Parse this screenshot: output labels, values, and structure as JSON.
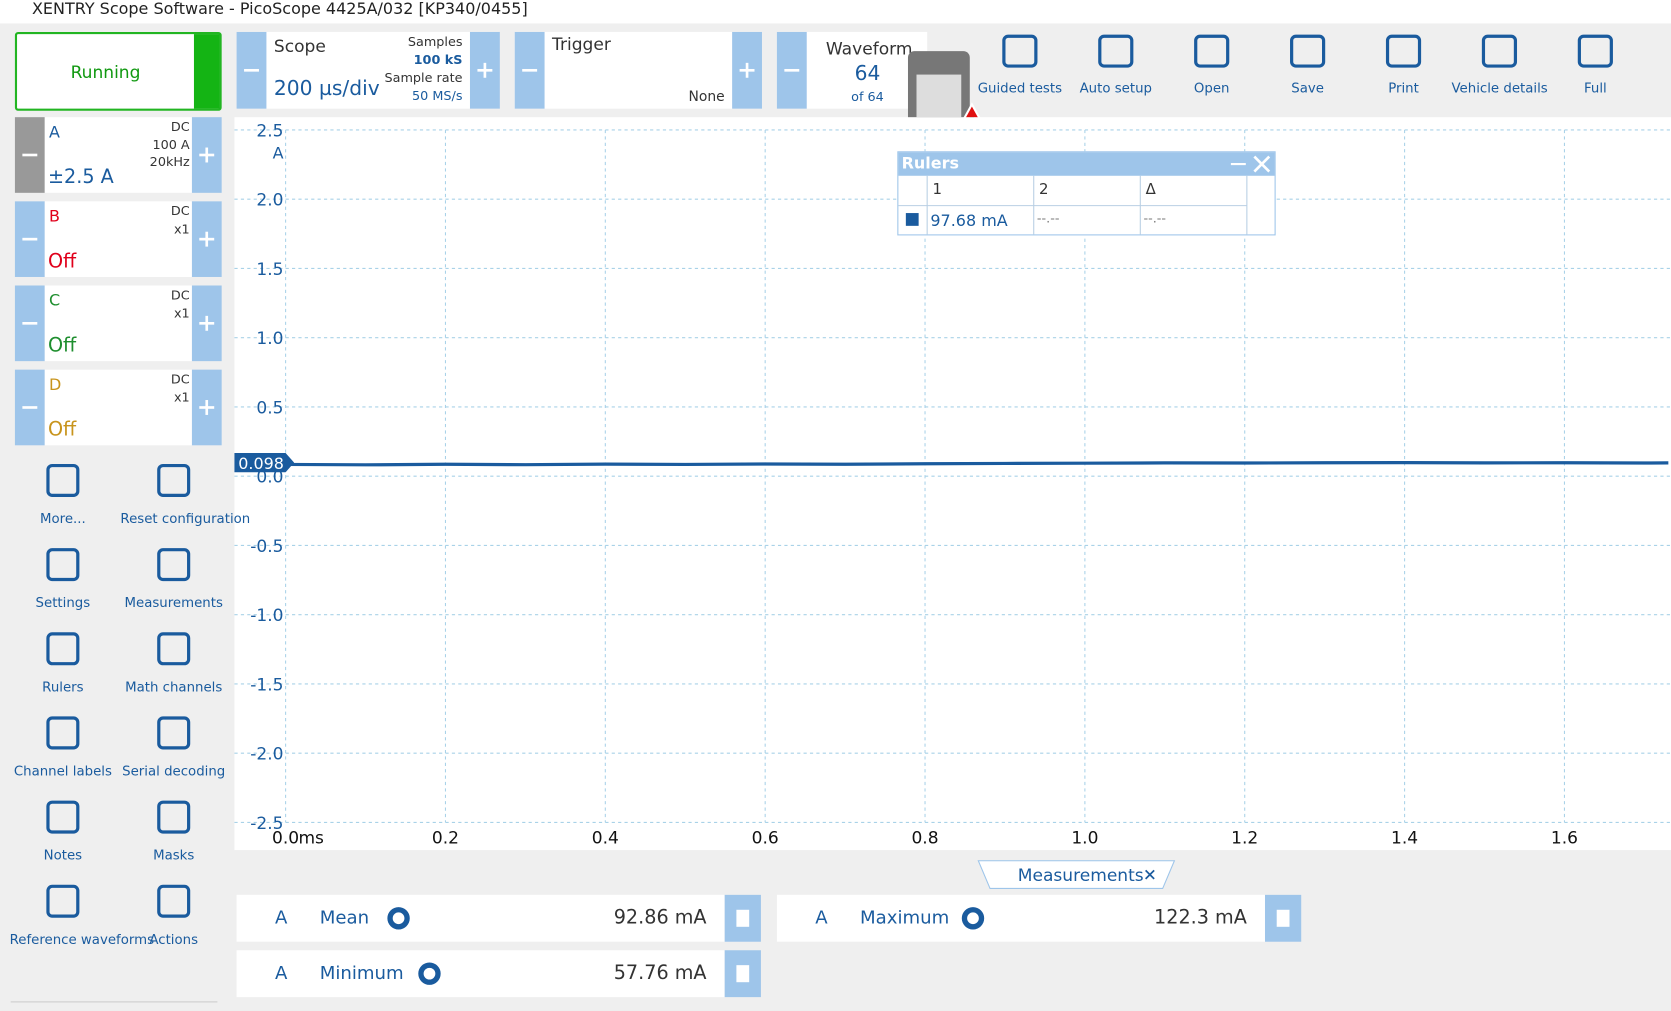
{
  "title_bar": {
    "title": "XENTRY Scope Software  - PicoScope 4425A/032 [KP340/0455]"
  },
  "run_button": {
    "label": "Running"
  },
  "toolbar": {
    "scope": {
      "label": "Scope",
      "timebase": "200 µs/div",
      "samples_label": "Samples",
      "samples": "100 kS",
      "rate_label": "Sample rate",
      "rate": "50 MS/s"
    },
    "trigger": {
      "label": "Trigger",
      "mode": "None"
    },
    "waveform": {
      "label": "Waveform",
      "current": "64",
      "total": "of 64"
    },
    "buttons": [
      "Guided tests",
      "Auto setup",
      "Open",
      "Save",
      "Print",
      "Vehicle details",
      "Full"
    ]
  },
  "channels": [
    {
      "name": "A",
      "coupling": "DC",
      "probe": "100 A",
      "filter": "20kHz",
      "range": "±2.5 A",
      "color": "#1a5b9e"
    },
    {
      "name": "B",
      "coupling": "DC",
      "probe": "x1",
      "range": "Off",
      "color": "#e0001b"
    },
    {
      "name": "C",
      "coupling": "DC",
      "probe": "x1",
      "range": "Off",
      "color": "#1e8e2e"
    },
    {
      "name": "D",
      "coupling": "DC",
      "probe": "x1",
      "range": "Off",
      "color": "#c8941c"
    }
  ],
  "side_menu": [
    "More...",
    "Reset configuration",
    "Settings",
    "Measurements",
    "Rulers",
    "Math channels",
    "Channel labels",
    "Serial decoding",
    "Notes",
    "Masks",
    "Reference waveforms",
    "Actions"
  ],
  "graph": {
    "type": "line",
    "y_unit": "A",
    "x_unit": "ms",
    "color": "#1a5b9e",
    "grid": true,
    "xlim": [
      0,
      1.73
    ],
    "ylim": [
      -2.5,
      2.5
    ],
    "xticks": [
      {
        "value": 0,
        "label": "0.0"
      },
      0.2,
      0.4,
      0.6,
      0.8,
      {
        "value": 1,
        "label": "1.0"
      },
      1.2,
      1.4,
      1.6
    ],
    "yticks": [
      2.5,
      {
        "value": 2,
        "label": "2.0"
      },
      1.5,
      {
        "value": 1,
        "label": "1.0"
      },
      0.5,
      {
        "value": 0,
        "label": "0.0"
      },
      -0.5,
      {
        "value": -1,
        "label": "-1.0"
      },
      -1.5,
      {
        "value": -2,
        "label": "-2.0"
      },
      -2.5
    ],
    "level_marker": 0.098,
    "x": [
      0,
      0.1,
      0.2,
      0.3,
      0.4,
      0.5,
      0.6,
      0.7,
      0.8,
      0.9,
      1.0,
      1.1,
      1.2,
      1.3,
      1.4,
      1.5,
      1.6,
      1.7,
      1.73
    ],
    "values": [
      0.085,
      0.082,
      0.086,
      0.083,
      0.087,
      0.085,
      0.088,
      0.086,
      0.09,
      0.092,
      0.094,
      0.096,
      0.095,
      0.097,
      0.098,
      0.096,
      0.097,
      0.095,
      0.096
    ]
  },
  "rulers": {
    "title": "Rulers",
    "headers": [
      "1",
      "2",
      "Δ"
    ],
    "row": [
      "97.68 mA",
      "--.--",
      "--.--"
    ]
  },
  "measurements": {
    "tab": "Measurements",
    "rows": [
      {
        "channel": "A",
        "name": "Mean",
        "value": "92.86 mA"
      },
      {
        "channel": "A",
        "name": "Maximum",
        "value": "122.3 mA"
      },
      {
        "channel": "A",
        "name": "Minimum",
        "value": "57.76 mA"
      }
    ]
  }
}
